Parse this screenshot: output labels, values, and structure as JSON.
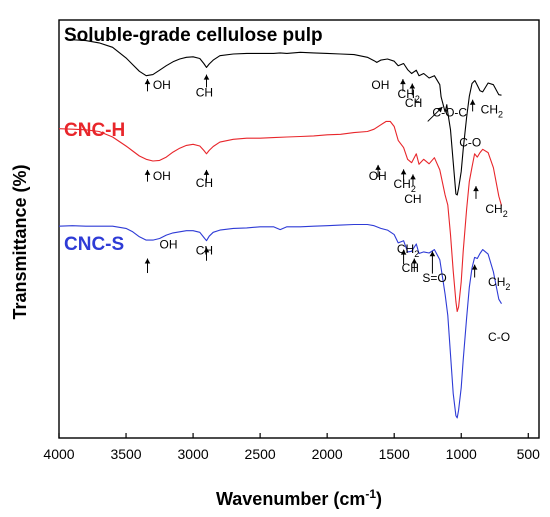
{
  "chart_data": {
    "type": "line",
    "xlabel": "Wavenumber (cm",
    "xlabel_sup": "-1",
    "xlabel_end": ")",
    "ylabel": "Transmittance (%)",
    "xlim": [
      4000,
      420
    ],
    "x_reversed": true,
    "x_ticks": [
      4000,
      3500,
      3000,
      2500,
      2000,
      1500,
      1000,
      500
    ],
    "y_ticks_shown": false,
    "grid": false,
    "legend": "none",
    "series": [
      {
        "name": "Soluble-grade cellulose pulp",
        "color": "#000000",
        "x": [
          3930,
          3800,
          3700,
          3600,
          3500,
          3450,
          3400,
          3350,
          3300,
          3250,
          3200,
          3150,
          3100,
          3050,
          3000,
          2950,
          2920,
          2900,
          2880,
          2850,
          2800,
          2700,
          2600,
          2500,
          2400,
          2350,
          2300,
          2200,
          2100,
          2000,
          1900,
          1800,
          1700,
          1650,
          1630,
          1600,
          1550,
          1500,
          1470,
          1430,
          1400,
          1370,
          1335,
          1315,
          1280,
          1240,
          1200,
          1160,
          1150,
          1120,
          1108,
          1100,
          1080,
          1060,
          1040,
          1030,
          1020,
          1000,
          985,
          960,
          940,
          920,
          900,
          897,
          880,
          860,
          840,
          800,
          760,
          720,
          700
        ],
        "y": [
          99.5,
          99.3,
          98.9,
          98.1,
          96.2,
          95.0,
          93.8,
          93.0,
          93.2,
          94.0,
          94.8,
          95.5,
          96.0,
          96.3,
          96.4,
          96.1,
          95.2,
          94.5,
          95.1,
          95.8,
          96.6,
          96.9,
          97.0,
          97.0,
          97.0,
          97.1,
          97.0,
          97.2,
          97.1,
          97.0,
          96.9,
          96.8,
          96.3,
          95.7,
          95.4,
          95.8,
          96.0,
          95.6,
          94.8,
          95.2,
          94.1,
          93.4,
          94.0,
          93.0,
          93.4,
          92.6,
          93.0,
          91.4,
          89.2,
          86.5,
          87.8,
          86.4,
          83.3,
          77.5,
          71.8,
          71.6,
          72.8,
          75.8,
          79.8,
          85.5,
          89.3,
          91.6,
          92.1,
          92.1,
          91.3,
          90.3,
          90.1,
          91.7,
          91.4,
          89.6,
          89.5
        ]
      },
      {
        "name": "CNC-H",
        "color": "#e8262b",
        "x": [
          4000,
          3900,
          3800,
          3700,
          3600,
          3500,
          3450,
          3400,
          3350,
          3300,
          3250,
          3200,
          3150,
          3100,
          3050,
          3000,
          2950,
          2920,
          2900,
          2880,
          2850,
          2800,
          2700,
          2600,
          2500,
          2400,
          2300,
          2200,
          2100,
          2000,
          1900,
          1800,
          1700,
          1650,
          1600,
          1560,
          1530,
          1500,
          1470,
          1430,
          1400,
          1370,
          1335,
          1315,
          1280,
          1240,
          1200,
          1160,
          1120,
          1100,
          1080,
          1060,
          1040,
          1030,
          1020,
          1000,
          985,
          960,
          940,
          920,
          900,
          880,
          860,
          840,
          800,
          760,
          720,
          700
        ],
        "y": [
          83.5,
          83.4,
          83.3,
          83.0,
          82.0,
          80.4,
          79.5,
          78.6,
          78.0,
          77.7,
          77.8,
          78.4,
          79.3,
          80.0,
          80.5,
          80.7,
          80.4,
          79.6,
          79.0,
          79.6,
          80.3,
          81.1,
          81.6,
          81.8,
          81.8,
          81.9,
          82.0,
          82.1,
          82.2,
          82.4,
          82.5,
          82.8,
          83.0,
          83.4,
          84.2,
          84.8,
          84.8,
          83.9,
          81.4,
          80.1,
          78.0,
          77.4,
          79.0,
          77.1,
          78.0,
          77.2,
          78.3,
          76.1,
          71.6,
          69.8,
          64.5,
          58.0,
          52.5,
          50.7,
          51.5,
          56.0,
          61.5,
          69.0,
          74.0,
          76.6,
          79.0,
          78.4,
          79.2,
          79.8,
          79.2,
          76.5,
          71.4,
          69.7
        ]
      },
      {
        "name": "CNC-S",
        "color": "#2e3bd6",
        "x": [
          4000,
          3900,
          3800,
          3700,
          3600,
          3500,
          3450,
          3400,
          3350,
          3300,
          3250,
          3200,
          3150,
          3100,
          3050,
          3000,
          2950,
          2920,
          2900,
          2880,
          2850,
          2800,
          2700,
          2600,
          2500,
          2400,
          2350,
          2300,
          2200,
          2100,
          2000,
          1900,
          1800,
          1700,
          1650,
          1600,
          1550,
          1500,
          1470,
          1430,
          1400,
          1370,
          1335,
          1315,
          1280,
          1240,
          1200,
          1160,
          1120,
          1100,
          1080,
          1060,
          1040,
          1030,
          1020,
          1000,
          985,
          960,
          940,
          920,
          900,
          880,
          860,
          840,
          800,
          760,
          720,
          700
        ],
        "y": [
          66.0,
          66.1,
          66.0,
          66.0,
          66.0,
          65.6,
          65.0,
          64.1,
          63.5,
          63.5,
          63.8,
          64.4,
          64.8,
          65.0,
          65.2,
          65.2,
          64.9,
          64.0,
          63.4,
          64.2,
          64.9,
          65.3,
          65.6,
          65.7,
          65.9,
          65.9,
          65.4,
          65.9,
          65.9,
          66.0,
          66.1,
          66.2,
          66.3,
          66.3,
          66.1,
          65.6,
          65.3,
          64.5,
          63.0,
          63.4,
          61.4,
          61.5,
          62.8,
          61.1,
          61.4,
          61.2,
          61.8,
          60.0,
          53.8,
          50.0,
          43.0,
          36.0,
          32.0,
          31.6,
          33.0,
          37.0,
          42.0,
          49.5,
          55.0,
          58.5,
          60.4,
          60.2,
          61.1,
          61.8,
          61.0,
          57.8,
          52.9,
          52.1
        ]
      }
    ]
  },
  "annotations": [
    {
      "text": "OH",
      "x": 3300,
      "y": 90.6
    },
    {
      "text": "CH",
      "x": 2980,
      "y": 89.3
    },
    {
      "text": "OH",
      "x": 1670,
      "y": 90.6
    },
    {
      "text": "CH",
      "x": 1475,
      "y": 89.0,
      "sub": "2"
    },
    {
      "text": "CH",
      "x": 1420,
      "y": 87.4
    },
    {
      "text": "C-O-C",
      "x": 1215,
      "y": 85.7
    },
    {
      "text": "CH",
      "x": 855,
      "y": 86.2,
      "sub": "2"
    },
    {
      "text": "C-O",
      "x": 1015,
      "y": 80.3
    },
    {
      "text": "OH",
      "x": 3300,
      "y": 74.3
    },
    {
      "text": "CH",
      "x": 2980,
      "y": 73.0
    },
    {
      "text": "OH",
      "x": 1690,
      "y": 74.3
    },
    {
      "text": "CH",
      "x": 1505,
      "y": 72.9,
      "sub": "2"
    },
    {
      "text": "CH",
      "x": 1425,
      "y": 70.2
    },
    {
      "text": "CH",
      "x": 820,
      "y": 68.4,
      "sub": "2"
    },
    {
      "text": "OH",
      "x": 3250,
      "y": 62.0
    },
    {
      "text": "CH",
      "x": 2980,
      "y": 60.9
    },
    {
      "text": "CH",
      "x": 1480,
      "y": 61.2,
      "sub": "2"
    },
    {
      "text": "CH",
      "x": 1445,
      "y": 57.8
    },
    {
      "text": "S=O",
      "x": 1290,
      "y": 56.0
    },
    {
      "text": "CH",
      "x": 800,
      "y": 55.3,
      "sub": "2"
    },
    {
      "text": "C-O",
      "x": 800,
      "y": 45.4
    }
  ],
  "arrows": [
    {
      "x": 3340,
      "y_top": 92.4,
      "y_bottom": 90.2
    },
    {
      "x": 2900,
      "y_top": 93.2,
      "y_bottom": 90.9
    },
    {
      "x": 1435,
      "y_top": 92.4,
      "y_bottom": 90.2
    },
    {
      "x": 1365,
      "y_top": 91.6,
      "y_bottom": 89.5
    },
    {
      "x": 915,
      "y_top": 88.7,
      "y_bottom": 86.6
    },
    {
      "x": 3340,
      "y_top": 76.1,
      "y_bottom": 74.0
    },
    {
      "x": 2900,
      "y_top": 76.1,
      "y_bottom": 74.0
    },
    {
      "x": 1620,
      "y_top": 77.0,
      "y_bottom": 74.8
    },
    {
      "x": 1430,
      "y_top": 76.2,
      "y_bottom": 74.0
    },
    {
      "x": 1360,
      "y_top": 75.3,
      "y_bottom": 73.2
    },
    {
      "x": 890,
      "y_top": 73.2,
      "y_bottom": 70.9
    },
    {
      "x": 3340,
      "y_top": 60.2,
      "y_bottom": 57.6
    },
    {
      "x": 2900,
      "y_top": 62.2,
      "y_bottom": 59.8
    },
    {
      "x": 1430,
      "y_top": 61.8,
      "y_bottom": 59.2
    },
    {
      "x": 1350,
      "y_top": 60.2,
      "y_bottom": 57.8
    },
    {
      "x": 1215,
      "y_top": 61.5,
      "y_bottom": 57.5
    },
    {
      "x": 900,
      "y_top": 59.1,
      "y_bottom": 56.8
    }
  ],
  "diagonal_arrow": {
    "x_from": 1250,
    "y_from": 84.8,
    "x_to": 1140,
    "y_to": 87.4
  }
}
